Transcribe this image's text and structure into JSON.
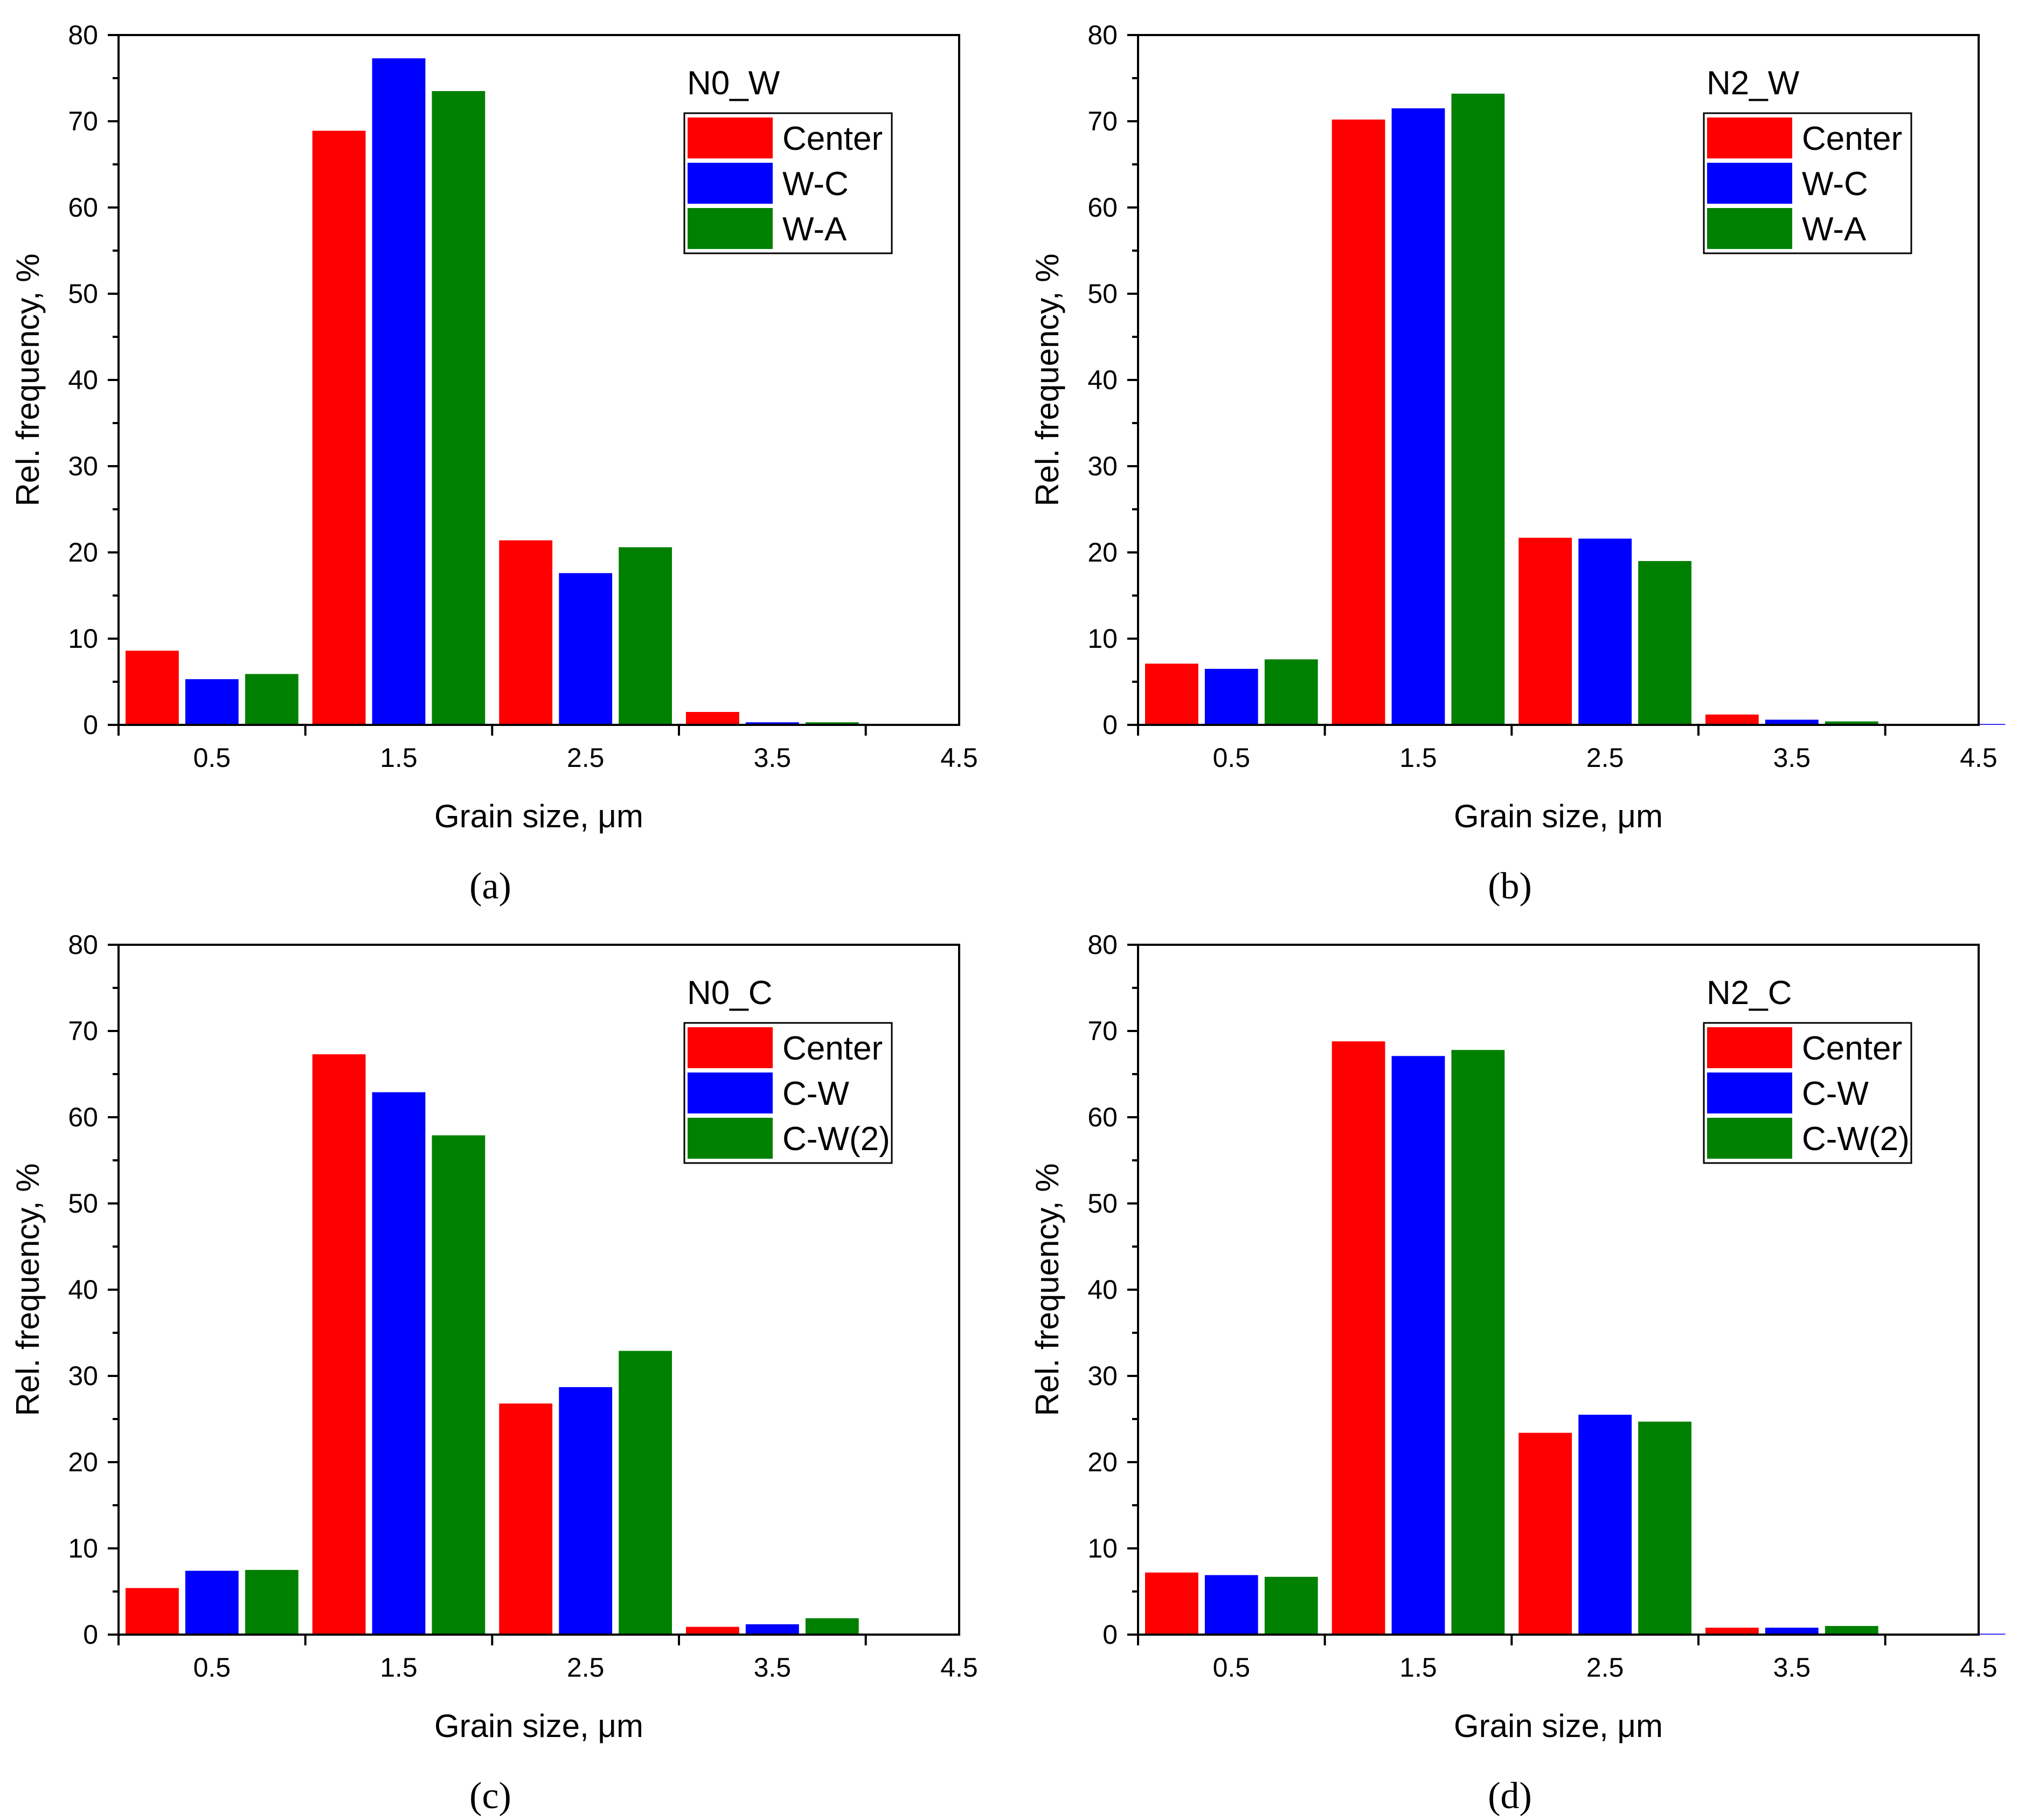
{
  "colors": {
    "Center": "#ff0000",
    "W-C": "#0000ff",
    "W-A": "#008000",
    "C-W": "#0000ff",
    "C-W(2)": "#008000"
  },
  "chart_data": [
    {
      "type": "bar",
      "panel": "(a)",
      "title": "N0_W",
      "xlabel": "Grain size, μm",
      "ylabel": "Rel. frequency, %",
      "xticks": [
        "0.5",
        "1.5",
        "2.5",
        "3.5",
        "4.5"
      ],
      "categories": [
        "0.5",
        "1.5",
        "2.5",
        "3.5",
        "4.5"
      ],
      "xlim": [
        0,
        4.5
      ],
      "ylim": [
        0,
        80
      ],
      "yticks": [
        "0",
        "10",
        "20",
        "30",
        "40",
        "50",
        "60",
        "70",
        "80"
      ],
      "legend": "top-right",
      "series": [
        {
          "name": "Center",
          "color": "#ff0000",
          "values": [
            8.6,
            68.9,
            21.4,
            1.5,
            0.1
          ]
        },
        {
          "name": "W-C",
          "color": "#0000ff",
          "values": [
            5.3,
            77.3,
            17.6,
            0.3,
            0
          ]
        },
        {
          "name": "W-A",
          "color": "#008000",
          "values": [
            5.9,
            73.5,
            20.6,
            0.3,
            0
          ]
        }
      ]
    },
    {
      "type": "bar",
      "panel": "(b)",
      "title": "N2_W",
      "xlabel": "Grain size, μm",
      "ylabel": "Rel. frequency, %",
      "xticks": [
        "0.5",
        "1.5",
        "2.5",
        "3.5",
        "4.5"
      ],
      "categories": [
        "0.5",
        "1.5",
        "2.5",
        "3.5",
        "4.5"
      ],
      "xlim": [
        0,
        4.5
      ],
      "ylim": [
        0,
        80
      ],
      "yticks": [
        "0",
        "10",
        "20",
        "30",
        "40",
        "50",
        "60",
        "70",
        "80"
      ],
      "legend": "top-right",
      "series": [
        {
          "name": "Center",
          "color": "#ff0000",
          "values": [
            7.1,
            70.2,
            21.7,
            1.2,
            0.1
          ]
        },
        {
          "name": "W-C",
          "color": "#0000ff",
          "values": [
            6.5,
            71.5,
            21.6,
            0.6,
            0.1
          ]
        },
        {
          "name": "W-A",
          "color": "#008000",
          "values": [
            7.6,
            73.2,
            19.0,
            0.4,
            0
          ]
        }
      ]
    },
    {
      "type": "bar",
      "panel": "(c)",
      "title": "N0_C",
      "xlabel": "Grain size, μm",
      "ylabel": "Rel. frequency, %",
      "xticks": [
        "0.5",
        "1.5",
        "2.5",
        "3.5",
        "4.5"
      ],
      "categories": [
        "0.5",
        "1.5",
        "2.5",
        "3.5",
        "4.5"
      ],
      "xlim": [
        0,
        4.5
      ],
      "ylim": [
        0,
        80
      ],
      "yticks": [
        "0",
        "10",
        "20",
        "30",
        "40",
        "50",
        "60",
        "70",
        "80"
      ],
      "legend": "top-right",
      "series": [
        {
          "name": "Center",
          "color": "#ff0000",
          "values": [
            5.4,
            67.3,
            26.8,
            0.9,
            0
          ]
        },
        {
          "name": "C-W",
          "color": "#0000ff",
          "values": [
            7.4,
            62.9,
            28.7,
            1.2,
            0
          ]
        },
        {
          "name": "C-W(2)",
          "color": "#008000",
          "values": [
            7.5,
            57.9,
            32.9,
            1.9,
            0
          ]
        }
      ]
    },
    {
      "type": "bar",
      "panel": "(d)",
      "title": "N2_C",
      "xlabel": "Grain size, μm",
      "ylabel": "Rel. frequency, %",
      "xticks": [
        "0.5",
        "1.5",
        "2.5",
        "3.5",
        "4.5"
      ],
      "categories": [
        "0.5",
        "1.5",
        "2.5",
        "3.5",
        "4.5"
      ],
      "xlim": [
        0,
        4.5
      ],
      "ylim": [
        0,
        80
      ],
      "yticks": [
        "0",
        "10",
        "20",
        "30",
        "40",
        "50",
        "60",
        "70",
        "80"
      ],
      "legend": "top-right",
      "series": [
        {
          "name": "Center",
          "color": "#ff0000",
          "values": [
            7.2,
            68.8,
            23.4,
            0.8,
            0.1
          ]
        },
        {
          "name": "C-W",
          "color": "#0000ff",
          "values": [
            6.9,
            67.1,
            25.5,
            0.8,
            0.1
          ]
        },
        {
          "name": "C-W(2)",
          "color": "#008000",
          "values": [
            6.7,
            67.8,
            24.7,
            1.0,
            0
          ]
        }
      ]
    }
  ]
}
